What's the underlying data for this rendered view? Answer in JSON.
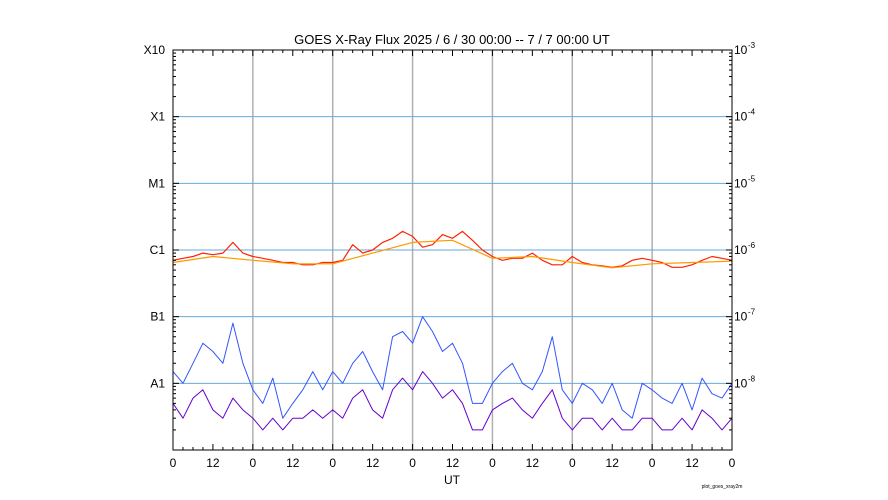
{
  "chart_data": {
    "type": "line",
    "title": "GOES X-Ray Flux   2025 /  6 / 30   00:00 --  7 /  7   00:00   UT",
    "xlabel": "UT",
    "ylabel": "",
    "footnote": "plot_goes_xray2m",
    "x_range_hours": [
      0,
      168
    ],
    "x_tick_labels": [
      "0",
      "12",
      "0",
      "12",
      "0",
      "12",
      "0",
      "12",
      "0",
      "12",
      "0",
      "12",
      "0",
      "12",
      "0"
    ],
    "y_scale": "log",
    "ylim": [
      1e-09,
      0.001
    ],
    "y_left_ticks": [
      {
        "label": "A1",
        "value": 1e-08
      },
      {
        "label": "B1",
        "value": 1e-07
      },
      {
        "label": "C1",
        "value": 1e-06
      },
      {
        "label": "M1",
        "value": 1e-05
      },
      {
        "label": "X1",
        "value": 0.0001
      },
      {
        "label": "X10",
        "value": 0.001
      }
    ],
    "y_right_ticks": [
      {
        "base": "10",
        "exp": "-8",
        "value": 1e-08
      },
      {
        "base": "10",
        "exp": "-7",
        "value": 1e-07
      },
      {
        "base": "10",
        "exp": "-6",
        "value": 1e-06
      },
      {
        "base": "10",
        "exp": "-5",
        "value": 1e-05
      },
      {
        "base": "10",
        "exp": "-4",
        "value": 0.0001
      },
      {
        "base": "10",
        "exp": "-3",
        "value": 0.001
      }
    ],
    "grid": true,
    "series": [
      {
        "color": "#ff2200",
        "x": [
          0,
          3,
          6,
          9,
          12,
          15,
          18,
          21,
          24,
          27,
          30,
          33,
          36,
          39,
          42,
          45,
          48,
          51,
          54,
          57,
          60,
          63,
          66,
          69,
          72,
          75,
          78,
          81,
          84,
          87,
          90,
          93,
          96,
          99,
          102,
          105,
          108,
          111,
          114,
          117,
          120,
          123,
          126,
          129,
          132,
          135,
          138,
          141,
          144,
          147,
          150,
          153,
          156,
          159,
          162,
          165,
          168
        ],
        "values": [
          7e-07,
          7.5e-07,
          8e-07,
          9e-07,
          8.5e-07,
          9e-07,
          1.3e-06,
          9e-07,
          8e-07,
          7.5e-07,
          7e-07,
          6.5e-07,
          6.5e-07,
          6e-07,
          6e-07,
          6.5e-07,
          6.5e-07,
          7e-07,
          1.2e-06,
          9e-07,
          1e-06,
          1.3e-06,
          1.5e-06,
          1.9e-06,
          1.6e-06,
          1.1e-06,
          1.2e-06,
          1.7e-06,
          1.5e-06,
          1.9e-06,
          1.4e-06,
          1e-06,
          8e-07,
          7e-07,
          7.5e-07,
          7.5e-07,
          9e-07,
          7e-07,
          6e-07,
          6e-07,
          8e-07,
          6.5e-07,
          6e-07,
          5.8e-07,
          5.5e-07,
          5.8e-07,
          7e-07,
          7.5e-07,
          7e-07,
          6.5e-07,
          5.5e-07,
          5.5e-07,
          6e-07,
          7e-07,
          8e-07,
          7.5e-07,
          7e-07
        ]
      },
      {
        "color": "#ff9900",
        "x": [
          0,
          12,
          24,
          36,
          48,
          60,
          72,
          84,
          96,
          108,
          120,
          132,
          144,
          156,
          168
        ],
        "values": [
          6.5e-07,
          8e-07,
          7e-07,
          6.2e-07,
          6.2e-07,
          9e-07,
          1.3e-06,
          1.4e-06,
          7.5e-07,
          8e-07,
          6.5e-07,
          5.4e-07,
          6.2e-07,
          6.5e-07,
          6.8e-07
        ]
      },
      {
        "color": "#3355ff",
        "x": [
          0,
          3,
          6,
          9,
          12,
          15,
          18,
          21,
          24,
          27,
          30,
          33,
          36,
          39,
          42,
          45,
          48,
          51,
          54,
          57,
          60,
          63,
          66,
          69,
          72,
          75,
          78,
          81,
          84,
          87,
          90,
          93,
          96,
          99,
          102,
          105,
          108,
          111,
          114,
          117,
          120,
          123,
          126,
          129,
          132,
          135,
          138,
          141,
          144,
          147,
          150,
          153,
          156,
          159,
          162,
          165,
          168
        ],
        "values": [
          1.5e-08,
          1e-08,
          2e-08,
          4e-08,
          3e-08,
          2e-08,
          8e-08,
          2e-08,
          8e-09,
          5e-09,
          1.2e-08,
          3e-09,
          5e-09,
          8e-09,
          1.5e-08,
          8e-09,
          1.5e-08,
          1e-08,
          2e-08,
          3e-08,
          1.5e-08,
          8e-09,
          5e-08,
          6e-08,
          4e-08,
          1e-07,
          6e-08,
          3e-08,
          4e-08,
          2e-08,
          5e-09,
          5e-09,
          1e-08,
          1.5e-08,
          2e-08,
          1e-08,
          8e-09,
          1.5e-08,
          5e-08,
          8e-09,
          5e-09,
          1e-08,
          8e-09,
          5e-09,
          1e-08,
          4e-09,
          3e-09,
          1e-08,
          8e-09,
          6e-09,
          5e-09,
          1e-08,
          4e-09,
          1.2e-08,
          7e-09,
          6e-09,
          1e-08
        ]
      },
      {
        "color": "#6600cc",
        "x": [
          0,
          3,
          6,
          9,
          12,
          15,
          18,
          21,
          24,
          27,
          30,
          33,
          36,
          39,
          42,
          45,
          48,
          51,
          54,
          57,
          60,
          63,
          66,
          69,
          72,
          75,
          78,
          81,
          84,
          87,
          90,
          93,
          96,
          99,
          102,
          105,
          108,
          111,
          114,
          117,
          120,
          123,
          126,
          129,
          132,
          135,
          138,
          141,
          144,
          147,
          150,
          153,
          156,
          159,
          162,
          165,
          168
        ],
        "values": [
          5e-09,
          3e-09,
          6e-09,
          8e-09,
          4e-09,
          3e-09,
          6e-09,
          4e-09,
          3e-09,
          2e-09,
          3e-09,
          2e-09,
          3e-09,
          3e-09,
          4e-09,
          3e-09,
          4e-09,
          3e-09,
          6e-09,
          8e-09,
          4e-09,
          3e-09,
          8e-09,
          1.2e-08,
          8e-09,
          1.5e-08,
          1e-08,
          6e-09,
          8e-09,
          5e-09,
          2e-09,
          2e-09,
          4e-09,
          5e-09,
          6e-09,
          4e-09,
          3e-09,
          5e-09,
          8e-09,
          3e-09,
          2e-09,
          3e-09,
          3e-09,
          2e-09,
          3e-09,
          2e-09,
          2e-09,
          3e-09,
          3e-09,
          2e-09,
          2e-09,
          3e-09,
          2e-09,
          4e-09,
          3e-09,
          2e-09,
          3e-09
        ]
      }
    ]
  }
}
